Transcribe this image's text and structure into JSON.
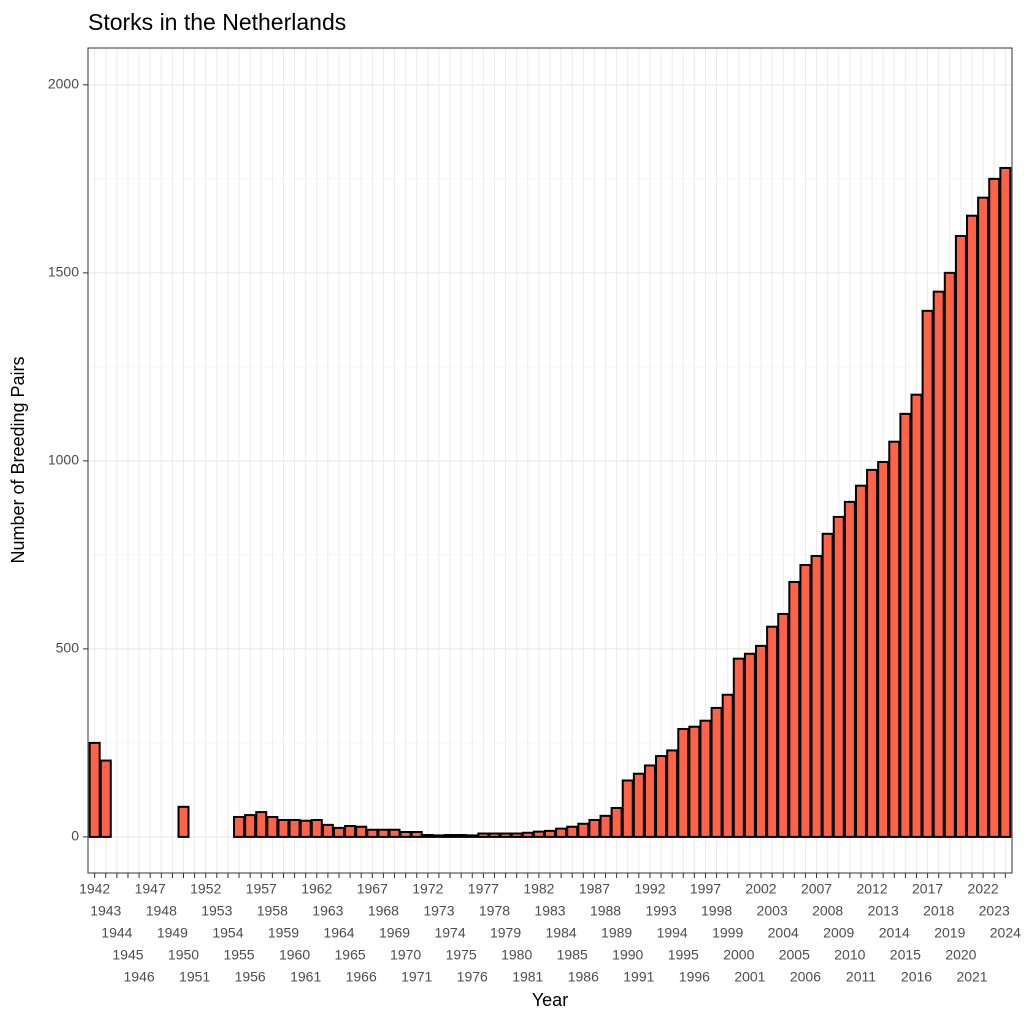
{
  "chart_data": {
    "type": "bar",
    "title": "Storks in the Netherlands",
    "x_label": "Year",
    "y_label": "Number of Breeding Pairs",
    "categories": [
      "1942",
      "1943",
      "1944",
      "1945",
      "1946",
      "1947",
      "1948",
      "1949",
      "1950",
      "1951",
      "1952",
      "1953",
      "1954",
      "1955",
      "1956",
      "1957",
      "1958",
      "1959",
      "1960",
      "1961",
      "1962",
      "1963",
      "1964",
      "1965",
      "1966",
      "1967",
      "1968",
      "1969",
      "1970",
      "1971",
      "1972",
      "1973",
      "1974",
      "1975",
      "1976",
      "1977",
      "1978",
      "1979",
      "1980",
      "1981",
      "1982",
      "1983",
      "1984",
      "1985",
      "1986",
      "1987",
      "1988",
      "1989",
      "1990",
      "1991",
      "1992",
      "1993",
      "1994",
      "1995",
      "1996",
      "1997",
      "1998",
      "1999",
      "2000",
      "2001",
      "2002",
      "2003",
      "2004",
      "2005",
      "2006",
      "2007",
      "2008",
      "2009",
      "2010",
      "2011",
      "2012",
      "2013",
      "2014",
      "2015",
      "2016",
      "2017",
      "2018",
      "2019",
      "2020",
      "2021",
      "2022",
      "2023",
      "2024"
    ],
    "values": [
      250,
      203,
      null,
      null,
      null,
      null,
      null,
      null,
      80,
      null,
      null,
      null,
      null,
      53,
      58,
      66,
      53,
      45,
      45,
      43,
      45,
      32,
      24,
      29,
      27,
      19,
      19,
      19,
      13,
      13,
      5,
      4,
      5,
      5,
      4,
      9,
      9,
      9,
      9,
      11,
      14,
      16,
      22,
      27,
      35,
      45,
      56,
      77,
      150,
      168,
      190,
      215,
      230,
      287,
      293,
      309,
      343,
      378,
      474,
      487,
      508,
      559,
      593,
      678,
      723,
      747,
      806,
      851,
      891,
      934,
      976,
      997,
      1051,
      1125,
      1176,
      1399,
      1450,
      1500,
      1598,
      1652,
      1700,
      1750,
      1779
    ],
    "color": "#ff6347",
    "edge_color": "#000000",
    "ylim": [
      -96,
      2098
    ],
    "yticks": [
      0,
      500,
      1000,
      1500,
      2000
    ],
    "grid": true
  }
}
